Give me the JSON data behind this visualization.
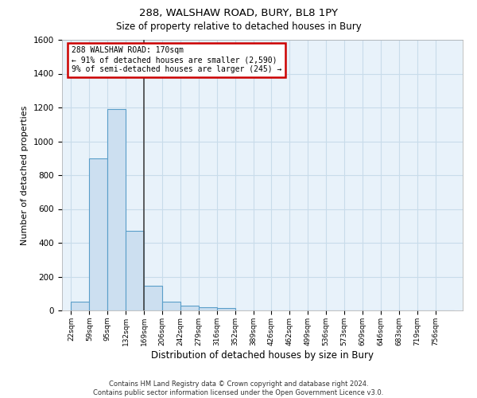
{
  "title_line1": "288, WALSHAW ROAD, BURY, BL8 1PY",
  "title_line2": "Size of property relative to detached houses in Bury",
  "xlabel": "Distribution of detached houses by size in Bury",
  "ylabel": "Number of detached properties",
  "footnote": "Contains HM Land Registry data © Crown copyright and database right 2024.\nContains public sector information licensed under the Open Government Licence v3.0.",
  "bar_labels": [
    "22sqm",
    "59sqm",
    "95sqm",
    "132sqm",
    "169sqm",
    "206sqm",
    "242sqm",
    "279sqm",
    "316sqm",
    "352sqm",
    "389sqm",
    "426sqm",
    "462sqm",
    "499sqm",
    "536sqm",
    "573sqm",
    "609sqm",
    "646sqm",
    "683sqm",
    "719sqm",
    "756sqm"
  ],
  "bar_values": [
    50,
    900,
    1190,
    470,
    148,
    50,
    28,
    20,
    13,
    0,
    0,
    0,
    0,
    0,
    0,
    0,
    0,
    0,
    0,
    0,
    0
  ],
  "bar_color": "#ccdff0",
  "bar_edge_color": "#5a9ec9",
  "annotation_text_line1": "288 WALSHAW ROAD: 170sqm",
  "annotation_text_line2": "← 91% of detached houses are smaller (2,590)",
  "annotation_text_line3": "9% of semi-detached houses are larger (245) →",
  "annotation_box_color": "#ffffff",
  "annotation_box_edge_color": "#cc0000",
  "ylim": [
    0,
    1600
  ],
  "yticks": [
    0,
    200,
    400,
    600,
    800,
    1000,
    1200,
    1400,
    1600
  ],
  "grid_color": "#c8dcea",
  "background_color": "#e8f2fa",
  "bin_width": 37,
  "vline_x": 169
}
